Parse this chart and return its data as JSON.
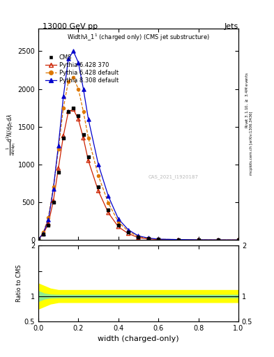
{
  "title_top": "13000 GeV pp",
  "title_right": "Jets",
  "plot_title": "Width$\\lambda$_1$^1$ (charged only) (CMS jet substructure)",
  "xlabel": "width (charged-only)",
  "ylabel_ratio": "Ratio to CMS",
  "right_label": "Rivet 3.1.10, $\\geq$ 3.4M events",
  "right_label2": "mcplots.cern.ch [arXiv:1306.3436]",
  "watermark": "CAS_2021_I1920187",
  "x_data": [
    0.0,
    0.025,
    0.05,
    0.075,
    0.1,
    0.125,
    0.15,
    0.175,
    0.2,
    0.225,
    0.25,
    0.3,
    0.35,
    0.4,
    0.45,
    0.5,
    0.55,
    0.6,
    0.7,
    0.8,
    0.9,
    1.0
  ],
  "cms_y": [
    10,
    80,
    200,
    500,
    900,
    1350,
    1700,
    1750,
    1650,
    1400,
    1100,
    700,
    400,
    200,
    100,
    40,
    20,
    10,
    5,
    2,
    1,
    0.5
  ],
  "py6_370_y": [
    10,
    80,
    220,
    520,
    950,
    1380,
    1700,
    1730,
    1600,
    1350,
    1050,
    650,
    360,
    175,
    85,
    32,
    15,
    7,
    3,
    1.2,
    0.5,
    0.2
  ],
  "py6_def_y": [
    10,
    100,
    300,
    700,
    1200,
    1750,
    2100,
    2150,
    2000,
    1700,
    1350,
    850,
    490,
    240,
    115,
    45,
    22,
    10,
    5,
    2,
    0.8,
    0.3
  ],
  "py8_def_y": [
    10,
    90,
    270,
    680,
    1250,
    1900,
    2400,
    2500,
    2350,
    2000,
    1600,
    1000,
    580,
    280,
    135,
    55,
    26,
    12,
    6,
    2.5,
    1,
    0.4
  ],
  "cms_color": "#000000",
  "py6_370_color": "#cc2200",
  "py6_def_color": "#dd7700",
  "py8_def_color": "#0000cc",
  "ylim_main": [
    0,
    2800
  ],
  "ylim_ratio": [
    0.5,
    2.0
  ],
  "xlim": [
    0.0,
    1.0
  ],
  "yticks_main": [
    0,
    500,
    1000,
    1500,
    2000,
    2500
  ],
  "ytick_labels_main": [
    "0",
    "500",
    "1000",
    "1500",
    "2000",
    "2500"
  ],
  "ratio_yellow_lo": [
    0.75,
    0.8,
    0.85,
    0.88,
    0.88,
    0.88,
    0.88,
    0.88,
    0.88,
    0.88,
    0.88,
    0.88
  ],
  "ratio_yellow_hi": [
    1.25,
    1.2,
    1.15,
    1.12,
    1.12,
    1.12,
    1.12,
    1.12,
    1.12,
    1.12,
    1.12,
    1.12
  ],
  "ratio_x_yellow": [
    0.0,
    0.03,
    0.06,
    0.1,
    0.2,
    0.3,
    0.4,
    0.5,
    0.6,
    0.7,
    0.8,
    1.0
  ],
  "ratio_green_lo": [
    0.9,
    0.95,
    0.97,
    0.975,
    0.975,
    0.975,
    0.975,
    0.975,
    0.975,
    0.975,
    0.975,
    0.975
  ],
  "ratio_green_hi": [
    1.1,
    1.05,
    1.03,
    1.025,
    1.025,
    1.025,
    1.025,
    1.025,
    1.025,
    1.025,
    1.025,
    1.025
  ],
  "ratio_x_green": [
    0.0,
    0.03,
    0.06,
    0.1,
    0.2,
    0.3,
    0.4,
    0.5,
    0.6,
    0.7,
    0.8,
    1.0
  ]
}
